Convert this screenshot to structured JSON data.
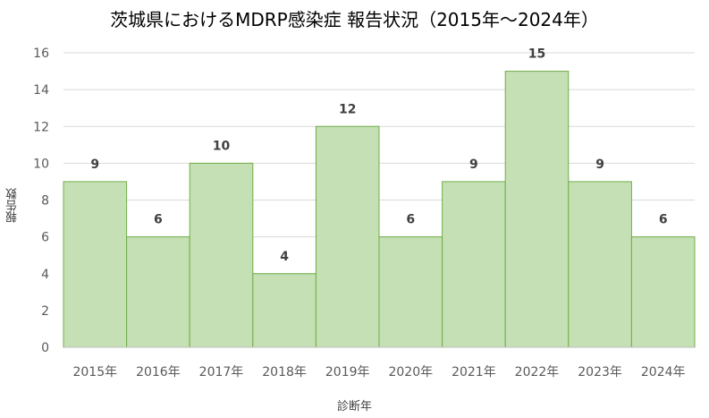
{
  "chart_data": {
    "type": "bar",
    "title": "茨城県におけるMDRP感染症 報告状況（2015年～2024年）",
    "xlabel": "診断年",
    "ylabel": "報告数",
    "categories": [
      "2015年",
      "2016年",
      "2017年",
      "2018年",
      "2019年",
      "2020年",
      "2021年",
      "2022年",
      "2023年",
      "2024年"
    ],
    "values": [
      9,
      6,
      10,
      4,
      12,
      6,
      9,
      15,
      9,
      6
    ],
    "ylim": [
      0,
      16
    ],
    "yticks": [
      0,
      2,
      4,
      6,
      8,
      10,
      12,
      14,
      16
    ],
    "grid": true,
    "legend": "none",
    "colors": {
      "bar_fill": "#c5e0b4",
      "bar_stroke": "#70ad47",
      "grid": "#d9d9d9"
    }
  }
}
